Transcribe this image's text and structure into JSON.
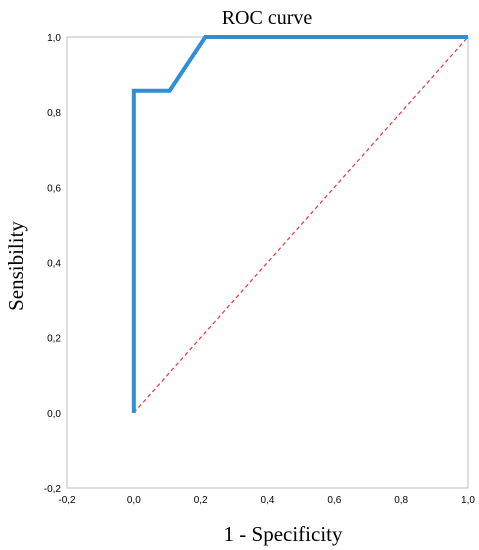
{
  "chart_data": {
    "type": "line",
    "title": "ROC curve",
    "xlabel": "1 - Specificity",
    "ylabel": "Sensibility",
    "xlim": [
      -0.2,
      1.0
    ],
    "ylim": [
      -0.2,
      1.0
    ],
    "x_ticks": [
      "-0,2",
      "0,0",
      "0,2",
      "0,4",
      "0,6",
      "0,8",
      "1,0"
    ],
    "y_ticks": [
      "-0,2",
      "0,0",
      "0,2",
      "0,4",
      "0,6",
      "0,8",
      "1,0"
    ],
    "grid": false,
    "series": [
      {
        "style": "solid",
        "color": "#2e8fd6",
        "points": [
          [
            0.0,
            0.0
          ],
          [
            0.0,
            0.857
          ],
          [
            0.107,
            0.857
          ],
          [
            0.214,
            1.0
          ],
          [
            1.0,
            1.0
          ]
        ]
      },
      {
        "style": "dashed",
        "color": "#e8424a",
        "points": [
          [
            0.0,
            0.0
          ],
          [
            1.0,
            1.0
          ]
        ]
      }
    ]
  }
}
